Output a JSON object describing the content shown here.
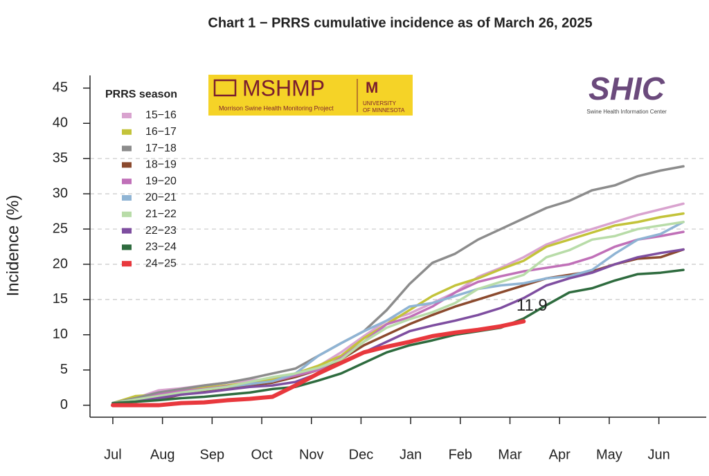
{
  "chart_data": {
    "type": "line",
    "title": "Chart 1 − PRRS cumulative incidence as of March 26, 2025",
    "ylabel": "Incidence (%)",
    "legend_title": "PRRS season",
    "annotation": "11.9",
    "x": [
      1,
      3,
      5,
      7,
      9,
      11,
      13,
      15,
      17,
      19,
      21,
      23,
      25,
      27,
      29,
      31,
      33,
      35,
      37,
      39,
      41,
      43,
      45,
      47,
      49,
      51
    ],
    "xlim": [
      -1,
      53
    ],
    "xticks": [
      {
        "value": 1,
        "label": "Jul"
      },
      {
        "value": 5.35,
        "label": "Aug"
      },
      {
        "value": 9.7,
        "label": "Sep"
      },
      {
        "value": 14.05,
        "label": "Oct"
      },
      {
        "value": 18.4,
        "label": "Nov"
      },
      {
        "value": 22.75,
        "label": "Dec"
      },
      {
        "value": 27.1,
        "label": "Jan"
      },
      {
        "value": 31.45,
        "label": "Feb"
      },
      {
        "value": 35.8,
        "label": "Mar"
      },
      {
        "value": 40.15,
        "label": "Apr"
      },
      {
        "value": 44.5,
        "label": "May"
      },
      {
        "value": 48.85,
        "label": "Jun"
      }
    ],
    "ylim": [
      -1.7,
      46.8
    ],
    "yticks": [
      0,
      5,
      10,
      15,
      20,
      25,
      30,
      35,
      40,
      45
    ],
    "ygrid": [
      15,
      20,
      25,
      30,
      35
    ],
    "series": [
      {
        "name": "15−16",
        "color": "#d9a3cf",
        "values": [
          0.3,
          1,
          2.1,
          2.4,
          2.8,
          3.2,
          3.5,
          3.8,
          4.4,
          5.5,
          7.5,
          9.8,
          12,
          13,
          14.5,
          16,
          18.2,
          19.5,
          21,
          22.8,
          24,
          25,
          26,
          27,
          27.8,
          28.6
        ]
      },
      {
        "name": "16−17",
        "color": "#c3c33a",
        "values": [
          0.3,
          1.3,
          1.5,
          2,
          2.5,
          2.8,
          3.2,
          3.6,
          4.5,
          5.6,
          7,
          9.5,
          11.5,
          13.5,
          15.5,
          17,
          18,
          19.3,
          20.5,
          22.5,
          23.5,
          24.5,
          25.5,
          26,
          26.7,
          27.2
        ]
      },
      {
        "name": "17−18",
        "color": "#8c8c8c",
        "values": [
          0.3,
          1,
          1.8,
          2.3,
          2.8,
          3.2,
          3.8,
          4.5,
          5.2,
          7,
          8.8,
          10.5,
          13.5,
          17.2,
          20.2,
          21.5,
          23.5,
          25,
          26.5,
          28,
          29,
          30.5,
          31.2,
          32.5,
          33.3,
          33.9
        ]
      },
      {
        "name": "18−19",
        "color": "#8b4a2e",
        "values": [
          0.3,
          0.5,
          0.8,
          1.5,
          2,
          2.3,
          2.8,
          3.2,
          4,
          5,
          6.5,
          8.5,
          10,
          11.5,
          12.8,
          14,
          15,
          16,
          17,
          18,
          18.5,
          19,
          20,
          20.8,
          21,
          22.1
        ]
      },
      {
        "name": "19−20",
        "color": "#c070b8",
        "values": [
          0.3,
          0.6,
          1.5,
          2,
          2.3,
          2.7,
          3,
          3.4,
          4.2,
          5,
          6.7,
          9,
          11.5,
          12.5,
          14,
          16,
          17.5,
          18.3,
          19,
          19.5,
          20,
          21,
          22.5,
          23.5,
          24,
          24.6
        ]
      },
      {
        "name": "20−21",
        "color": "#8fb4d4",
        "values": [
          0.3,
          0.7,
          1.2,
          1.8,
          2.2,
          2.6,
          3,
          3.4,
          4.5,
          7,
          8.8,
          10.5,
          12,
          14,
          14.5,
          15.5,
          16.5,
          17,
          17.3,
          18,
          18.3,
          19.2,
          21.5,
          23.5,
          24.3,
          26
        ]
      },
      {
        "name": "21−22",
        "color": "#b8dca8",
        "values": [
          0.3,
          0.8,
          1.3,
          1.8,
          2.2,
          2.6,
          3.3,
          4,
          4.5,
          5.3,
          6.5,
          9,
          11,
          12.2,
          13.2,
          14.5,
          16.5,
          17.5,
          18.5,
          21,
          22,
          23.5,
          24,
          25,
          25.5,
          26
        ]
      },
      {
        "name": "22−23",
        "color": "#7e4ea0",
        "values": [
          0.3,
          0.5,
          1,
          1.5,
          1.8,
          2.2,
          2.6,
          2.8,
          3.3,
          4.5,
          6,
          7.5,
          9,
          10.5,
          11.3,
          12,
          12.8,
          13.8,
          15.2,
          17,
          18,
          18.8,
          20,
          21,
          21.6,
          22.1
        ]
      },
      {
        "name": "23−24",
        "color": "#2e6b3e",
        "values": [
          0.3,
          0.5,
          0.7,
          1,
          1.2,
          1.5,
          1.8,
          2.3,
          2.6,
          3.5,
          4.5,
          6,
          7.5,
          8.5,
          9.2,
          10,
          10.5,
          11,
          12.3,
          14.2,
          16,
          16.6,
          17.7,
          18.6,
          18.8,
          19.2
        ]
      },
      {
        "name": "24−25",
        "color": "#e8383d",
        "values": [
          0,
          0,
          0,
          0.3,
          0.4,
          0.7,
          0.9,
          1.2,
          2.8,
          4.5,
          6,
          7.5,
          8.3,
          9,
          9.8,
          10.3,
          10.7,
          11.2,
          11.9,
          null,
          null,
          null,
          null,
          null,
          null,
          null
        ]
      }
    ]
  },
  "logos": {
    "mshmp": "MSHMP",
    "mshmp_sub": "Morrison Swine Health Monitoring Project",
    "umn1": "UNIVERSITY",
    "umn2": "OF MINNESOTA",
    "shic": "SHIC",
    "shic_sub": "Swine Health Information Center"
  }
}
